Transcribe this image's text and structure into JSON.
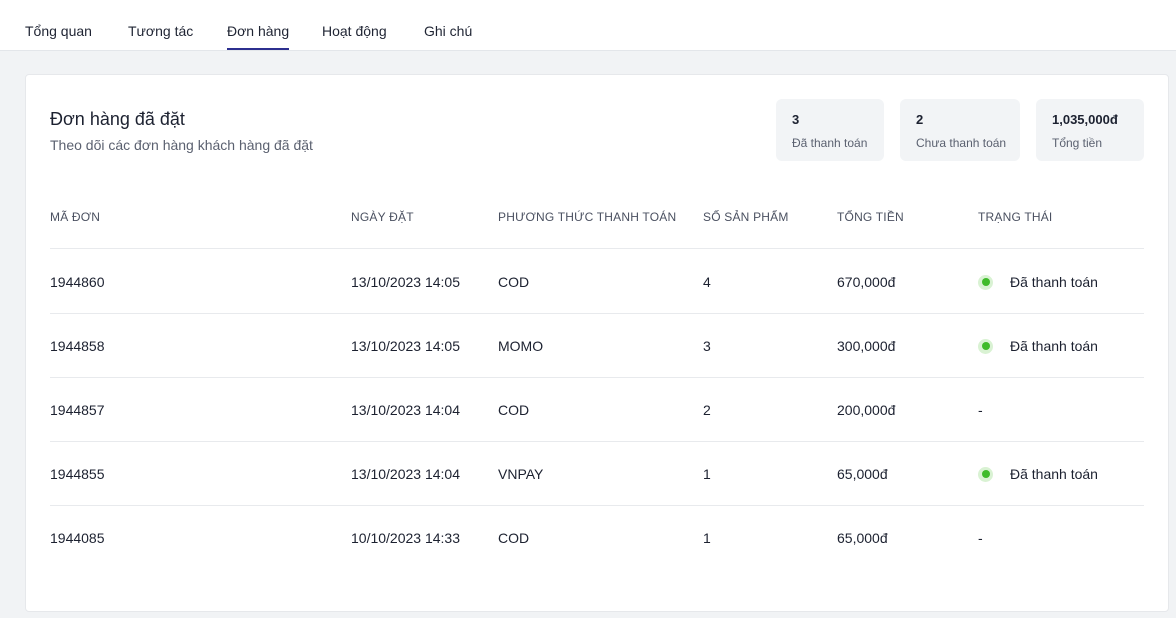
{
  "tabs": [
    "Tổng quan",
    "Tương tác",
    "Đơn hàng",
    "Hoạt động",
    "Ghi chú"
  ],
  "active_tab": "Đơn hàng",
  "card": {
    "title": "Đơn hàng đã đặt",
    "subtitle": "Theo dõi các đơn hàng khách hàng đã đặt"
  },
  "stats": [
    {
      "value": "3",
      "label": "Đã thanh toán"
    },
    {
      "value": "2",
      "label": "Chưa thanh toán"
    },
    {
      "value": "1,035,000đ",
      "label": "Tổng tiền"
    }
  ],
  "table": {
    "headers": [
      "MÃ ĐƠN",
      "NGÀY ĐẶT",
      "PHƯƠNG THỨC THANH TOÁN",
      "SỐ SẢN PHẨM",
      "TỔNG TIỀN",
      "TRẠNG THÁI"
    ],
    "rows": [
      {
        "id": "1944860",
        "date": "13/10/2023 14:05",
        "method": "COD",
        "items": "4",
        "total": "670,000đ",
        "status": "Đã thanh toán",
        "paid": true
      },
      {
        "id": "1944858",
        "date": "13/10/2023 14:05",
        "method": "MOMO",
        "items": "3",
        "total": "300,000đ",
        "status": "Đã thanh toán",
        "paid": true
      },
      {
        "id": "1944857",
        "date": "13/10/2023 14:04",
        "method": "COD",
        "items": "2",
        "total": "200,000đ",
        "status": "-",
        "paid": false
      },
      {
        "id": "1944855",
        "date": "13/10/2023 14:04",
        "method": "VNPAY",
        "items": "1",
        "total": "65,000đ",
        "status": "Đã thanh toán",
        "paid": true
      },
      {
        "id": "1944085",
        "date": "10/10/2023 14:33",
        "method": "COD",
        "items": "1",
        "total": "65,000đ",
        "status": "-",
        "paid": false
      }
    ]
  },
  "colors": {
    "accent": "#2c2f8f",
    "status_paid": "#3fbb2a"
  }
}
